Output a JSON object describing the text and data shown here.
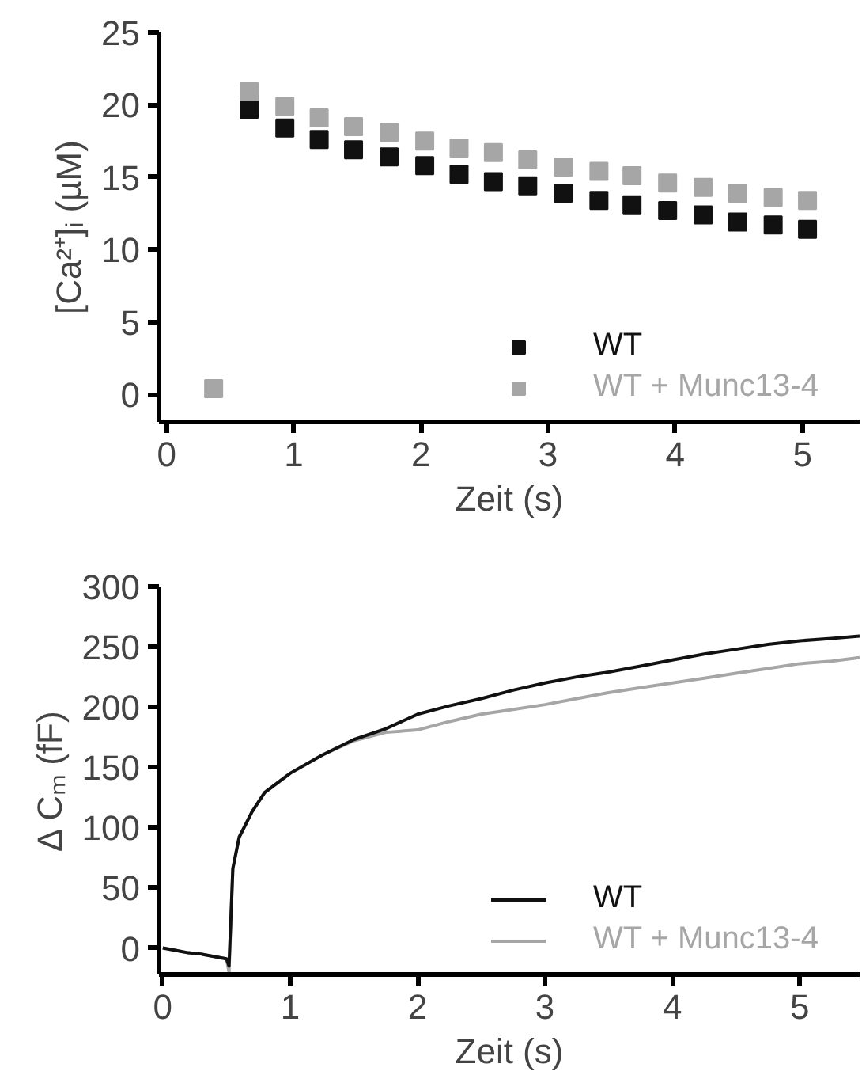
{
  "chart_data": [
    {
      "type": "scatter",
      "xlabel": "Zeit (s)",
      "ylabel": "[Ca²⁺]ᵢ (µM)",
      "xlim": [
        -0.06,
        5.45
      ],
      "ylim": [
        -1.9,
        25
      ],
      "xticks": [
        0,
        1,
        2,
        3,
        4,
        5
      ],
      "yticks": [
        0,
        5,
        10,
        15,
        20,
        25
      ],
      "grid": false,
      "legend": "bottom right",
      "marker": "square",
      "series": [
        {
          "name": "WT",
          "color": "#111111",
          "x": [
            0.65,
            0.93,
            1.2,
            1.47,
            1.75,
            2.03,
            2.3,
            2.57,
            2.84,
            3.12,
            3.4,
            3.66,
            3.94,
            4.22,
            4.49,
            4.77,
            5.04
          ],
          "values": [
            19.7,
            18.4,
            17.6,
            16.9,
            16.4,
            15.8,
            15.2,
            14.7,
            14.4,
            13.9,
            13.4,
            13.1,
            12.7,
            12.4,
            11.9,
            11.7,
            11.4
          ]
        },
        {
          "name": "WT + Munc13-4",
          "color": "#a6a6a6",
          "x": [
            0.37,
            0.65,
            0.93,
            1.2,
            1.47,
            1.75,
            2.03,
            2.3,
            2.57,
            2.84,
            3.12,
            3.4,
            3.66,
            3.94,
            4.22,
            4.49,
            4.77,
            5.04
          ],
          "values": [
            0.4,
            20.9,
            19.9,
            19.1,
            18.5,
            18.1,
            17.5,
            17.0,
            16.7,
            16.2,
            15.7,
            15.4,
            15.1,
            14.6,
            14.3,
            13.9,
            13.6,
            13.4
          ]
        }
      ]
    },
    {
      "type": "line",
      "xlabel": "Zeit (s)",
      "ylabel": "Δ Cₘ (fF)",
      "xlim": [
        -0.03,
        5.47
      ],
      "ylim": [
        -22,
        300
      ],
      "xticks": [
        0,
        1,
        2,
        3,
        4,
        5
      ],
      "yticks": [
        0,
        50,
        100,
        150,
        200,
        250,
        300
      ],
      "grid": false,
      "legend": "bottom right",
      "marker": "none",
      "line_style": "solid",
      "series": [
        {
          "name": "WT + Munc13-4",
          "color": "#a6a6a6",
          "x": [
            0,
            0.1,
            0.2,
            0.3,
            0.4,
            0.5,
            0.52,
            0.55,
            0.6,
            0.7,
            0.8,
            1.0,
            1.25,
            1.5,
            1.75,
            2.0,
            2.25,
            2.5,
            2.75,
            3.0,
            3.25,
            3.5,
            3.75,
            4.0,
            4.25,
            4.5,
            4.75,
            5.0,
            5.25,
            5.47
          ],
          "values": [
            0,
            -2,
            -4,
            -5,
            -7,
            -9,
            -20,
            66,
            92,
            113,
            129,
            145,
            160,
            172,
            179,
            181,
            188,
            194,
            198,
            202,
            207,
            212,
            216,
            220,
            224,
            228,
            232,
            236,
            238,
            241
          ]
        },
        {
          "name": "WT",
          "color": "#111111",
          "x": [
            0,
            0.1,
            0.2,
            0.3,
            0.4,
            0.5,
            0.52,
            0.55,
            0.6,
            0.7,
            0.8,
            1.0,
            1.25,
            1.5,
            1.75,
            2.0,
            2.25,
            2.5,
            2.75,
            3.0,
            3.25,
            3.5,
            3.75,
            4.0,
            4.25,
            4.5,
            4.75,
            5.0,
            5.25,
            5.47
          ],
          "values": [
            0,
            -2,
            -4,
            -5,
            -7,
            -9,
            -15,
            66,
            92,
            113,
            129,
            145,
            160,
            173,
            182,
            194,
            201,
            207,
            214,
            220,
            225,
            229,
            234,
            239,
            244,
            248,
            252,
            255,
            257,
            259
          ]
        }
      ]
    }
  ]
}
